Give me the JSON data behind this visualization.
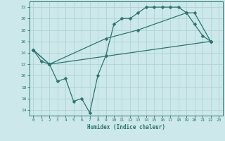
{
  "xlabel": "Humidex (Indice chaleur)",
  "bg_color": "#cce8ea",
  "grid_color": "#aed4d6",
  "line_color": "#2a7570",
  "ylim": [
    13,
    33
  ],
  "xlim": [
    -0.5,
    23.5
  ],
  "yticks": [
    14,
    16,
    18,
    20,
    22,
    24,
    26,
    28,
    30,
    32
  ],
  "xticks": [
    0,
    1,
    2,
    3,
    4,
    5,
    6,
    7,
    8,
    9,
    10,
    11,
    12,
    13,
    14,
    15,
    16,
    17,
    18,
    19,
    20,
    21,
    22,
    23
  ],
  "line1_x": [
    0,
    1,
    2,
    3,
    4,
    5,
    6,
    7,
    8,
    9,
    10,
    11,
    12,
    13,
    14,
    15,
    16,
    17,
    18,
    19,
    20,
    21,
    22
  ],
  "line1_y": [
    24.5,
    22.5,
    22.0,
    19.0,
    19.5,
    15.5,
    16.0,
    13.5,
    20.0,
    23.5,
    29.0,
    30.0,
    30.0,
    31.0,
    32.0,
    32.0,
    32.0,
    32.0,
    32.0,
    31.0,
    29.0,
    27.0,
    26.0
  ],
  "line2_x": [
    0,
    2,
    9,
    13,
    19,
    20,
    22
  ],
  "line2_y": [
    24.5,
    22.0,
    26.5,
    28.0,
    31.0,
    31.0,
    26.0
  ],
  "line3_x": [
    0,
    2,
    22
  ],
  "line3_y": [
    24.5,
    22.0,
    26.0
  ]
}
